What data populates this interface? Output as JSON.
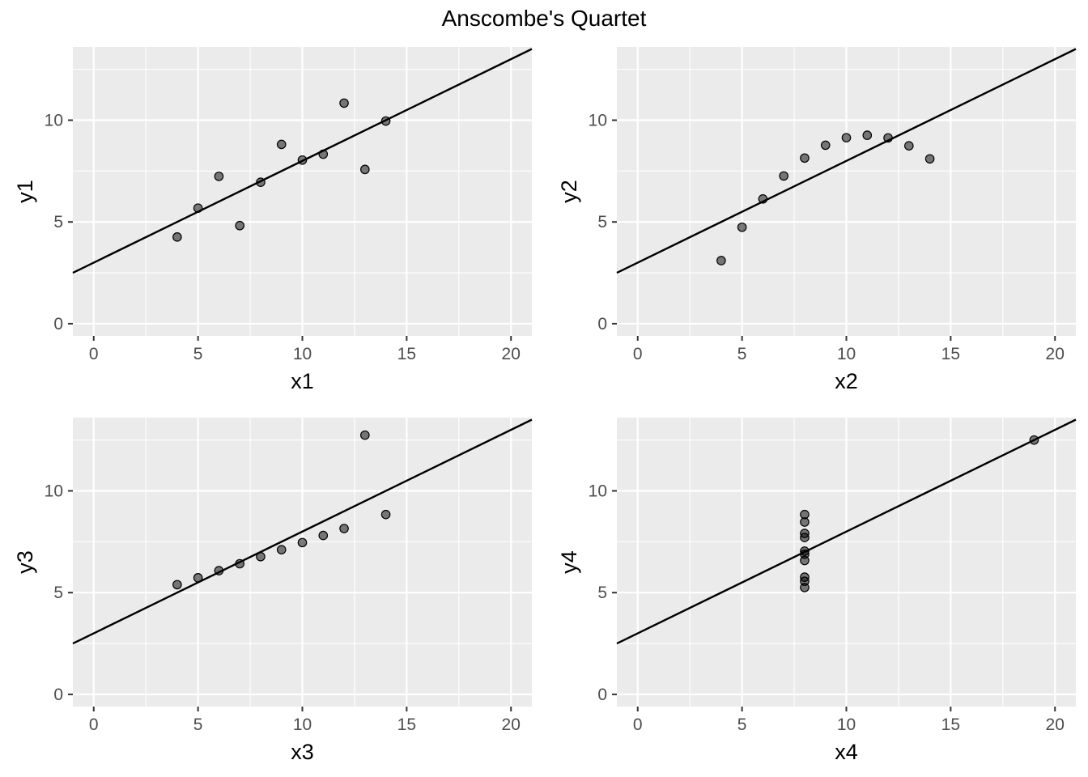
{
  "title": "Anscombe's Quartet",
  "chart_data": [
    {
      "type": "scatter",
      "xlabel": "x1",
      "ylabel": "y1",
      "xlim": [
        -1,
        21
      ],
      "ylim": [
        -0.6,
        13.6
      ],
      "x_ticks": [
        0,
        5,
        10,
        15,
        20
      ],
      "y_ticks": [
        0,
        5,
        10
      ],
      "x_tick_labels": [
        "0",
        "5",
        "10",
        "15",
        "20"
      ],
      "y_tick_labels": [
        "0",
        "5",
        "10"
      ],
      "grid": true,
      "x": [
        10,
        8,
        13,
        9,
        11,
        14,
        6,
        4,
        12,
        7,
        5
      ],
      "y": [
        8.04,
        6.95,
        7.58,
        8.81,
        8.33,
        9.96,
        7.24,
        4.26,
        10.84,
        4.82,
        5.68
      ],
      "fit_line": {
        "intercept": 3.0,
        "slope": 0.5
      }
    },
    {
      "type": "scatter",
      "xlabel": "x2",
      "ylabel": "y2",
      "xlim": [
        -1,
        21
      ],
      "ylim": [
        -0.6,
        13.6
      ],
      "x_ticks": [
        0,
        5,
        10,
        15,
        20
      ],
      "y_ticks": [
        0,
        5,
        10
      ],
      "x_tick_labels": [
        "0",
        "5",
        "10",
        "15",
        "20"
      ],
      "y_tick_labels": [
        "0",
        "5",
        "10"
      ],
      "grid": true,
      "x": [
        10,
        8,
        13,
        9,
        11,
        14,
        6,
        4,
        12,
        7,
        5
      ],
      "y": [
        9.14,
        8.14,
        8.74,
        8.77,
        9.26,
        8.1,
        6.13,
        3.1,
        9.13,
        7.26,
        4.74
      ],
      "fit_line": {
        "intercept": 3.0,
        "slope": 0.5
      }
    },
    {
      "type": "scatter",
      "xlabel": "x3",
      "ylabel": "y3",
      "xlim": [
        -1,
        21
      ],
      "ylim": [
        -0.6,
        13.6
      ],
      "x_ticks": [
        0,
        5,
        10,
        15,
        20
      ],
      "y_ticks": [
        0,
        5,
        10
      ],
      "x_tick_labels": [
        "0",
        "5",
        "10",
        "15",
        "20"
      ],
      "y_tick_labels": [
        "0",
        "5",
        "10"
      ],
      "grid": true,
      "x": [
        10,
        8,
        13,
        9,
        11,
        14,
        6,
        4,
        12,
        7,
        5
      ],
      "y": [
        7.46,
        6.77,
        12.74,
        7.11,
        7.81,
        8.84,
        6.08,
        5.39,
        8.15,
        6.42,
        5.73
      ],
      "fit_line": {
        "intercept": 3.0,
        "slope": 0.5
      }
    },
    {
      "type": "scatter",
      "xlabel": "x4",
      "ylabel": "y4",
      "xlim": [
        -1,
        21
      ],
      "ylim": [
        -0.6,
        13.6
      ],
      "x_ticks": [
        0,
        5,
        10,
        15,
        20
      ],
      "y_ticks": [
        0,
        5,
        10
      ],
      "x_tick_labels": [
        "0",
        "5",
        "10",
        "15",
        "20"
      ],
      "y_tick_labels": [
        "0",
        "5",
        "10"
      ],
      "grid": true,
      "x": [
        8,
        8,
        8,
        8,
        8,
        8,
        8,
        19,
        8,
        8,
        8
      ],
      "y": [
        6.58,
        5.76,
        7.71,
        8.84,
        8.47,
        7.04,
        5.25,
        12.5,
        5.56,
        7.91,
        6.89
      ],
      "fit_line": {
        "intercept": 3.0,
        "slope": 0.5
      }
    }
  ]
}
